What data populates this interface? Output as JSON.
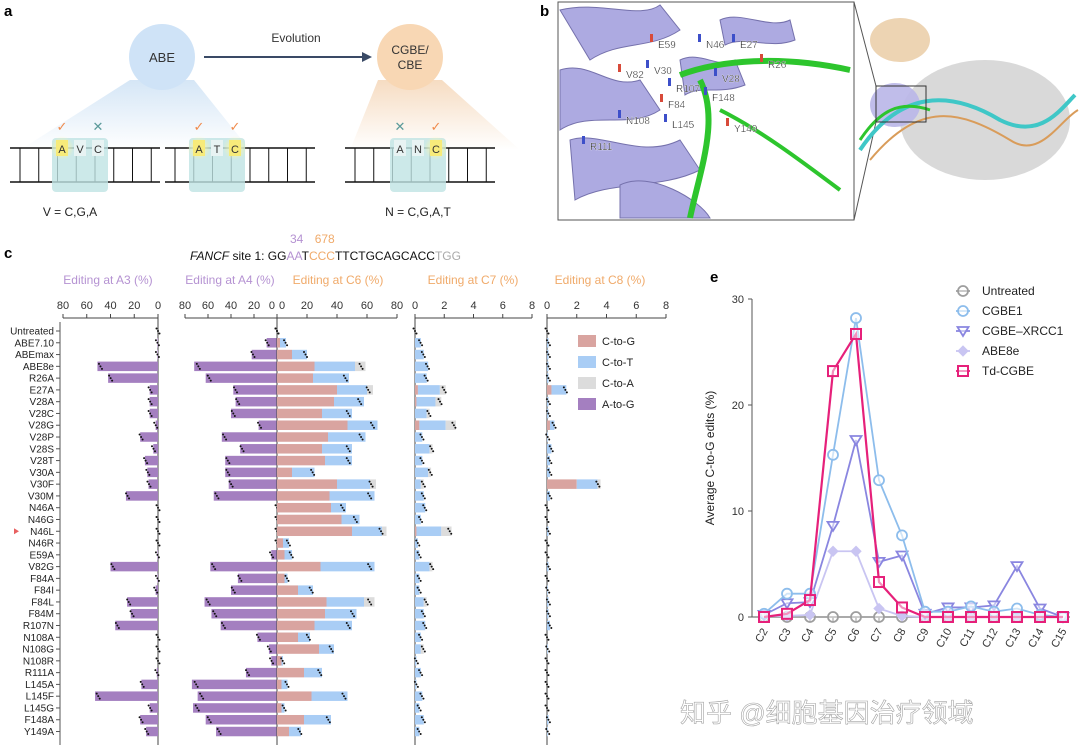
{
  "panels": {
    "a": "a",
    "b": "b",
    "c": "c",
    "e": "e"
  },
  "panel_a": {
    "left_enzyme": "ABE",
    "arrow_label": "Evolution",
    "right_enzyme_line1": "CGBE/",
    "right_enzyme_line2": "CBE",
    "check": "✓",
    "cross": "✕",
    "sites": [
      {
        "bases": [
          "A",
          "V",
          "C"
        ],
        "marks": [
          "check",
          "",
          "cross"
        ]
      },
      {
        "bases": [
          "A",
          "T",
          "C"
        ],
        "marks": [
          "check",
          "",
          "check"
        ]
      },
      {
        "bases": [
          "A",
          "N",
          "C"
        ],
        "marks": [
          "cross",
          "",
          "check"
        ]
      }
    ],
    "left_caption": "V = C,G,A",
    "right_caption": "N = C,G,A,T"
  },
  "panel_b": {
    "residues": [
      "E59",
      "N46",
      "E27",
      "V82",
      "V30",
      "V28",
      "R26",
      "R107",
      "F148",
      "F84",
      "N108",
      "L145",
      "Y149",
      "R111"
    ]
  },
  "panel_c_header": {
    "gene": "FANCF",
    "site": " site 1: ",
    "seq": [
      {
        "t": "GG",
        "c": "#111111"
      },
      {
        "t": "AA",
        "c": "#b592d2"
      },
      {
        "t": "T",
        "c": "#111111"
      },
      {
        "t": "CCC",
        "c": "#f0aa6a"
      },
      {
        "t": "TTCTGCAGCACC",
        "c": "#111111"
      },
      {
        "t": "TGG",
        "c": "#aaaaaa"
      }
    ],
    "pos_a": "34",
    "pos_c": "678"
  },
  "colors": {
    "a_to_g": "#a47fc0",
    "c_to_g": "#d9a4a0",
    "c_to_t": "#a9cdf5",
    "c_to_a": "#dcdcdc",
    "a_title": "#b592d2",
    "c_title": "#f0aa6a"
  },
  "watermark": "知乎 @细胞基因治疗领域",
  "chart_data": [
    {
      "type": "bar",
      "orientation": "horizontal",
      "stacked": true,
      "categories": [
        "Untreated",
        "ABE7.10",
        "ABEmax",
        "ABE8e",
        "R26A",
        "E27A",
        "V28A",
        "V28C",
        "V28G",
        "V28P",
        "V28S",
        "V28T",
        "V30A",
        "V30F",
        "V30M",
        "N46A",
        "N46G",
        "N46L",
        "N46R",
        "E59A",
        "V82G",
        "F84A",
        "F84I",
        "F84L",
        "F84M",
        "R107N",
        "N108A",
        "N108G",
        "N108R",
        "R111A",
        "L145A",
        "L145F",
        "L145G",
        "F148A",
        "Y149A"
      ],
      "highlighted": "N46L",
      "legend": [
        "C-to-G",
        "C-to-T",
        "C-to-A",
        "A-to-G"
      ],
      "legend_placement": "right",
      "subplots": [
        {
          "title": "Editing at A3 (%)",
          "xlim": [
            80,
            0
          ],
          "ticks": [
            "80",
            "60",
            "40",
            "20",
            "0"
          ],
          "series": [
            {
              "name": "A-to-G",
              "values": [
                0,
                0.5,
                0.5,
                51,
                42,
                7,
                7,
                7,
                2,
                15,
                4,
                11,
                9,
                8,
                27,
                0,
                0,
                0,
                0,
                0.5,
                40,
                0.5,
                2,
                26,
                23,
                36,
                0,
                0,
                0,
                1,
                14,
                53,
                7,
                15,
                10
              ]
            }
          ]
        },
        {
          "title": "Editing at A4 (%)",
          "xlim": [
            80,
            0
          ],
          "ticks": [
            "80",
            "60",
            "40",
            "20",
            "0"
          ],
          "series": [
            {
              "name": "A-to-G",
              "values": [
                0,
                9,
                22,
                72,
                62,
                38,
                36,
                40,
                16,
                48,
                32,
                45,
                45,
                42,
                55,
                0,
                0,
                0,
                0,
                5,
                58,
                34,
                40,
                63,
                57,
                49,
                17,
                7,
                5,
                27,
                74,
                69,
                73,
                62,
                53
              ]
            }
          ]
        },
        {
          "title": "Editing at C6 (%)",
          "xlim": [
            0,
            80
          ],
          "ticks": [
            "0",
            "20",
            "40",
            "60",
            "80"
          ],
          "series": [
            {
              "name": "C-to-G",
              "values": [
                0,
                2,
                10,
                25,
                24,
                40,
                38,
                30,
                47,
                34,
                30,
                32,
                10,
                40,
                35,
                36,
                43,
                50,
                4,
                5,
                29,
                5,
                14,
                33,
                32,
                25,
                14,
                28,
                3,
                18,
                3,
                23,
                3,
                18,
                8
              ]
            },
            {
              "name": "C-to-T",
              "values": [
                0,
                4,
                10,
                27,
                24,
                20,
                20,
                20,
                20,
                25,
                20,
                18,
                15,
                22,
                30,
                10,
                12,
                20,
                4,
                5,
                36,
                2,
                10,
                25,
                21,
                25,
                8,
                10,
                1,
                12,
                4,
                24,
                2,
                18,
                8
              ]
            },
            {
              "name": "C-to-A",
              "values": [
                0,
                0,
                0,
                7,
                0,
                4,
                0,
                0,
                0,
                0,
                0,
                0,
                0,
                4,
                0,
                0,
                0,
                3,
                0,
                0,
                0,
                0,
                0,
                7,
                0,
                0,
                0,
                0,
                0,
                0,
                0,
                0,
                0,
                0,
                0
              ]
            }
          ]
        },
        {
          "title": "Editing at C7 (%)",
          "xlim": [
            0,
            8
          ],
          "ticks": [
            "0",
            "2",
            "4",
            "6",
            "8"
          ],
          "series": [
            {
              "name": "C-to-G",
              "values": [
                0,
                0,
                0,
                0,
                0,
                0.2,
                0.1,
                0,
                0.3,
                0,
                0,
                0,
                0,
                0,
                0,
                0,
                0,
                0.1,
                0,
                0,
                0,
                0,
                0,
                0,
                0,
                0,
                0,
                0,
                0,
                0,
                0,
                0,
                0,
                0,
                0
              ]
            },
            {
              "name": "C-to-T",
              "values": [
                0,
                0.4,
                0.6,
                0.9,
                0.8,
                1.5,
                1.3,
                0.8,
                1.8,
                0.5,
                1,
                0.5,
                0.9,
                0.4,
                0.6,
                0.7,
                0.4,
                1.7,
                0.2,
                0.3,
                1,
                0.3,
                0.3,
                0.6,
                0.6,
                0.7,
                0.4,
                0.4,
                0.1,
                0.4,
                0.1,
                0.5,
                0.3,
                0.6,
                0.3
              ]
            },
            {
              "name": "C-to-A",
              "values": [
                0,
                0,
                0,
                0,
                0,
                0.4,
                0.4,
                0.2,
                0.7,
                0,
                0.2,
                0,
                0.2,
                0.2,
                0,
                0,
                0,
                0.7,
                0,
                0,
                0.2,
                0,
                0,
                0.2,
                0,
                0,
                0,
                0.2,
                0,
                0,
                0,
                0,
                0,
                0,
                0
              ]
            }
          ]
        },
        {
          "title": "Editing at C8 (%)",
          "xlim": [
            0,
            8
          ],
          "ticks": [
            "0",
            "2",
            "4",
            "6",
            "8"
          ],
          "series": [
            {
              "name": "C-to-G",
              "values": [
                0,
                0,
                0,
                0,
                0,
                0.3,
                0,
                0,
                0.2,
                0,
                0,
                0,
                0,
                2.0,
                0,
                0,
                0,
                0,
                0,
                0,
                0,
                0,
                0,
                0,
                0,
                0,
                0,
                0,
                0,
                0,
                0,
                0,
                0,
                0,
                0
              ]
            },
            {
              "name": "C-to-T",
              "values": [
                0,
                0.1,
                0.1,
                0.1,
                0.1,
                1,
                0.1,
                0.1,
                0.3,
                0.05,
                0.3,
                0.2,
                0.2,
                1.4,
                0.2,
                0,
                0,
                0.1,
                0,
                0,
                0.1,
                0,
                0.05,
                0.1,
                0.1,
                0.2,
                0,
                0.05,
                0,
                0,
                0,
                0,
                0,
                0.1,
                0.05
              ]
            },
            {
              "name": "C-to-A",
              "values": [
                0,
                0,
                0,
                0,
                0,
                0,
                0,
                0,
                0,
                0,
                0,
                0,
                0,
                0.2,
                0,
                0,
                0,
                0,
                0,
                0,
                0,
                0,
                0,
                0,
                0,
                0,
                0,
                0,
                0,
                0,
                0,
                0,
                0,
                0,
                0
              ]
            }
          ]
        }
      ]
    },
    {
      "type": "line",
      "x": [
        "C2",
        "C3",
        "C4",
        "C5",
        "C6",
        "C7",
        "C8",
        "C9",
        "C10",
        "C11",
        "C12",
        "C13",
        "C14",
        "C15"
      ],
      "ylabel": "Average C-to-G edits (%)",
      "ylim": [
        0,
        30
      ],
      "yticks": [
        "0",
        "10",
        "20",
        "30"
      ],
      "legend_placement": "top-right",
      "series": [
        {
          "name": "Untreated",
          "color": "#9e9e9e",
          "marker": "circle",
          "values": [
            0,
            0,
            0,
            0,
            0,
            0,
            0,
            0,
            0,
            0,
            0,
            0,
            0,
            0
          ]
        },
        {
          "name": "CGBE1",
          "color": "#8dbdec",
          "marker": "circle-open",
          "values": [
            0.3,
            2.2,
            2.2,
            15.3,
            28.2,
            12.9,
            7.7,
            0.5,
            0.5,
            1.0,
            0.5,
            0.8,
            0.2,
            0
          ]
        },
        {
          "name": "CGBE–XRCC1",
          "color": "#8a86e0",
          "marker": "triangle-down",
          "values": [
            0.2,
            1.3,
            1.4,
            8.6,
            16.7,
            5.2,
            5.8,
            0.3,
            0.9,
            0.9,
            1.1,
            4.8,
            0.8,
            0
          ]
        },
        {
          "name": "ABE8e",
          "color": "#c9c5f2",
          "marker": "diamond",
          "values": [
            0.1,
            0.1,
            0.2,
            6.2,
            6.2,
            0.8,
            0.1,
            0,
            0,
            0,
            0,
            0,
            0,
            0
          ]
        },
        {
          "name": "Td-CGBE",
          "color": "#e6207a",
          "marker": "square",
          "values": [
            0,
            0.3,
            1.6,
            23.2,
            26.7,
            3.3,
            0.9,
            0,
            0,
            0,
            0,
            0,
            0,
            0
          ]
        }
      ]
    }
  ]
}
